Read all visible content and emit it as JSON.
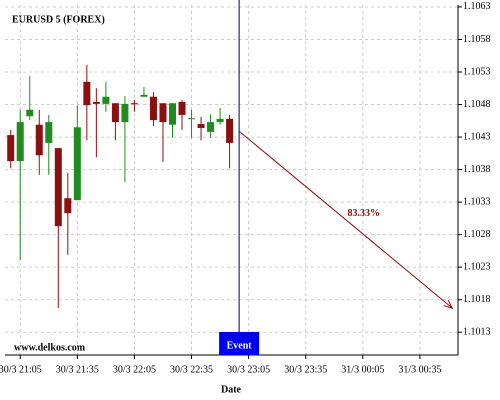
{
  "chart_data": {
    "type": "candlestick",
    "title": "EURUSD 5 (FOREX)",
    "x_label": "Date",
    "watermark": "www.delkos.com",
    "x": [
      "30/3 21:00",
      "30/3 21:05",
      "30/3 21:10",
      "30/3 21:15",
      "30/3 21:20",
      "30/3 21:25",
      "30/3 21:30",
      "30/3 21:35",
      "30/3 21:40",
      "30/3 21:45",
      "30/3 21:50",
      "30/3 21:55",
      "30/3 22:00",
      "30/3 22:05",
      "30/3 22:10",
      "30/3 22:15",
      "30/3 22:20",
      "30/3 22:25",
      "30/3 22:30",
      "30/3 22:35",
      "30/3 22:40",
      "30/3 22:45",
      "30/3 22:50",
      "30/3 22:55"
    ],
    "open": [
      1.10433,
      1.10393,
      1.10462,
      1.10449,
      1.10421,
      1.10413,
      1.10336,
      1.10333,
      1.10515,
      1.10484,
      1.10481,
      1.10482,
      1.10453,
      1.10482,
      1.10492,
      1.10492,
      1.10482,
      1.10449,
      1.10484,
      1.10458,
      1.1045,
      1.10438,
      1.10453,
      1.10458
    ],
    "close": [
      1.10393,
      1.10453,
      1.10472,
      1.10402,
      1.10453,
      1.10293,
      1.10313,
      1.10445,
      1.10479,
      1.10481,
      1.10492,
      1.10453,
      1.10481,
      1.10481,
      1.10495,
      1.10456,
      1.10453,
      1.10482,
      1.10464,
      1.10459,
      1.10444,
      1.10453,
      1.10458,
      1.10421
    ],
    "high": [
      1.10441,
      1.10472,
      1.10524,
      1.10472,
      1.10464,
      1.10413,
      1.10375,
      1.10479,
      1.10541,
      1.10505,
      1.10515,
      1.10482,
      1.10493,
      1.10487,
      1.10507,
      1.10499,
      1.10482,
      1.10482,
      1.10487,
      1.10472,
      1.10461,
      1.10465,
      1.10475,
      1.10464
    ],
    "low": [
      1.10382,
      1.10241,
      1.10456,
      1.10372,
      1.10372,
      1.10167,
      1.10249,
      1.10333,
      1.10425,
      1.10399,
      1.10469,
      1.10425,
      1.10361,
      1.10469,
      1.10492,
      1.10447,
      1.10392,
      1.10429,
      1.10441,
      1.10429,
      1.10425,
      1.10429,
      1.10449,
      1.10382
    ],
    "up_color": "#1e8c1e",
    "down_color": "#8b1010",
    "xlim": [
      "30/3 20:57",
      "31/3 00:55"
    ],
    "xticks": [
      "30/3 21:05",
      "30/3 21:35",
      "30/3 22:05",
      "30/3 22:35",
      "30/3 23:05",
      "30/3 23:35",
      "31/3 00:05",
      "31/3 00:35"
    ],
    "ylim": [
      1.10095,
      1.10633
    ],
    "yticks": [
      1.1063,
      1.1058,
      1.1053,
      1.1048,
      1.1043,
      1.1038,
      1.1033,
      1.1028,
      1.1023,
      1.1018,
      1.1013
    ],
    "grid": true,
    "event": {
      "x": "30/3 23:00",
      "label": "Event",
      "color": "#0000ee"
    },
    "arrow": {
      "from": [
        "30/3 23:00",
        1.10439
      ],
      "to": [
        "31/3 00:52",
        1.10167
      ],
      "label": "83.33%",
      "color": "#8b1010"
    }
  }
}
